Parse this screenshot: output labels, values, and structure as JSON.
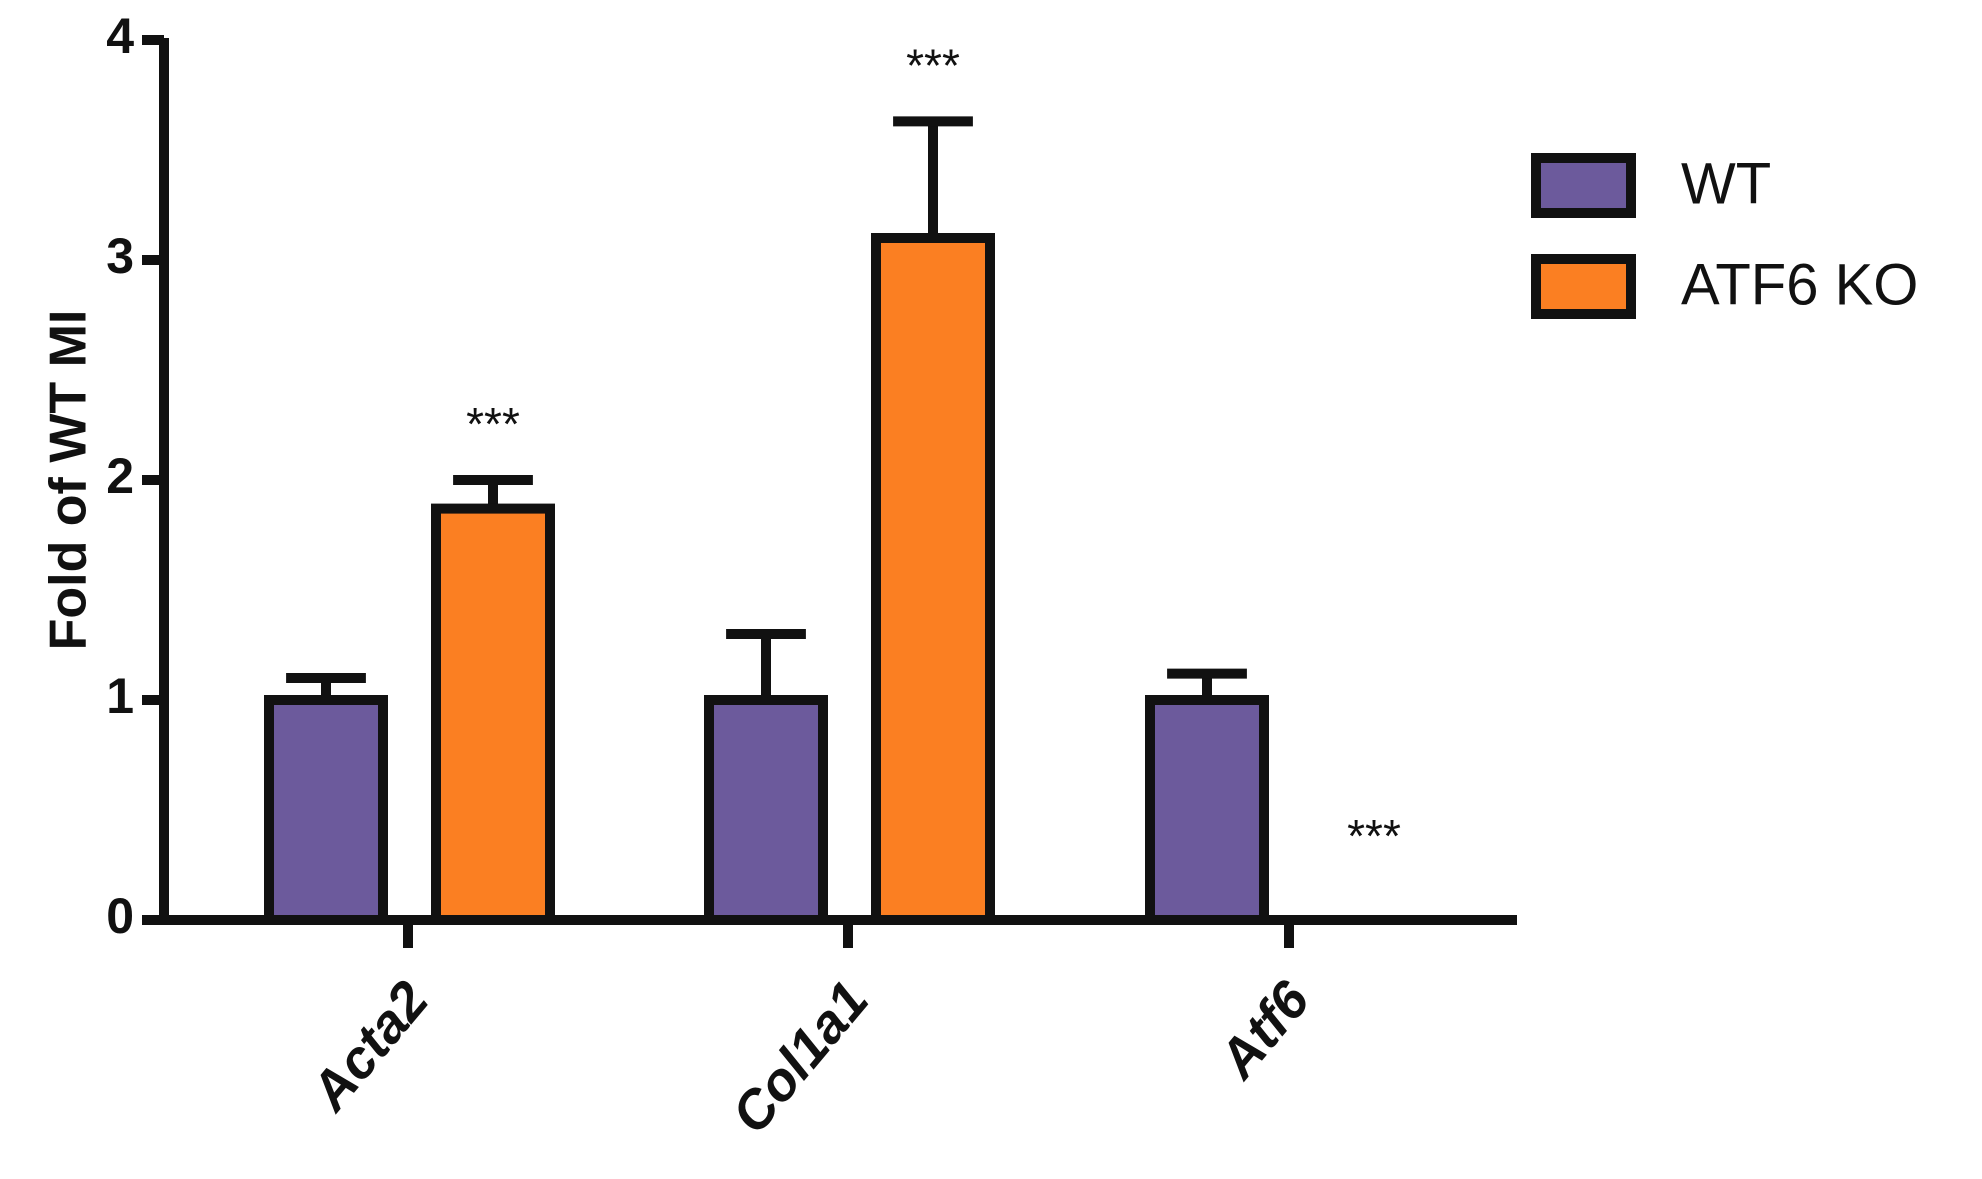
{
  "chart_data": {
    "type": "bar",
    "ylabel": "Fold of WT MI",
    "categories": [
      "Acta2",
      "Col1a1",
      "Atf6"
    ],
    "series": [
      {
        "name": "WT",
        "color": "#6c5a9c",
        "values": [
          1.0,
          1.0,
          1.0
        ],
        "errors": [
          0.1,
          0.3,
          0.12
        ]
      },
      {
        "name": "ATF6 KO",
        "color": "#fb7f22",
        "values": [
          1.87,
          3.1,
          0
        ],
        "errors": [
          0.13,
          0.53,
          null
        ],
        "significance": [
          "***",
          "***",
          "***"
        ]
      }
    ],
    "ylim": [
      0,
      4
    ],
    "yticks": [
      0,
      1,
      2,
      3,
      4
    ],
    "legend": "right"
  }
}
